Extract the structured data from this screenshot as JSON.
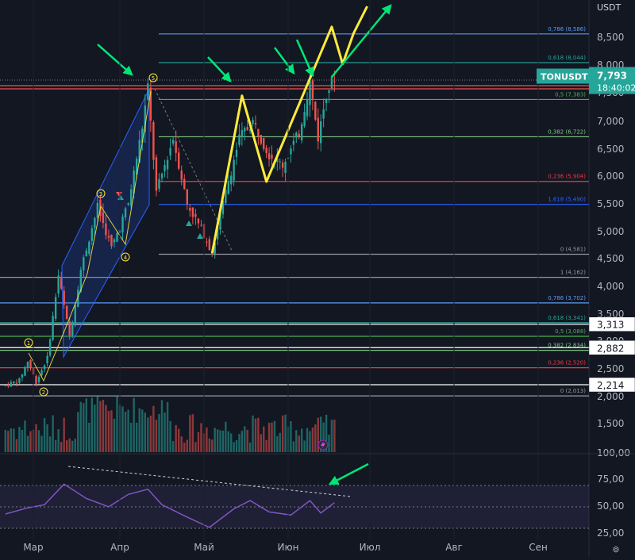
{
  "currency": "USDT",
  "symbol": "TONUSDT",
  "last_price": "7,793",
  "countdown": "18:40:02",
  "colors": {
    "background": "#131722",
    "up": "#26a69a",
    "down": "#ef5350",
    "yellow": "#ffeb3b",
    "green_arrow": "#00e676",
    "rsi_line": "#7e57c2",
    "channel": "#2962ff"
  },
  "price_axis": {
    "ticks": [
      "8,500",
      "8,000",
      "7,500",
      "7,000",
      "6,500",
      "6,000",
      "5,500",
      "5,000",
      "4,500",
      "4,000",
      "3,500",
      "3,000",
      "2,500",
      "2,000",
      "1,500",
      "100,00"
    ]
  },
  "time_axis": {
    "labels": [
      "Мар",
      "Апр",
      "Май",
      "Июн",
      "Июл",
      "Авг",
      "Сен"
    ]
  },
  "rsi_axis": {
    "ticks": [
      "75,00",
      "50,00",
      "25,00"
    ]
  },
  "price_tags": [
    {
      "label": "3,313",
      "price": 3313
    },
    {
      "label": "2,882",
      "price": 2882
    },
    {
      "label": "2,214",
      "price": 2214
    }
  ],
  "fib_upper": [
    {
      "label": "0,786 (8,586)",
      "price": 8586,
      "color": "#5b9cf6"
    },
    {
      "label": "0,618 (8,044)",
      "price": 8044,
      "color": "#26a69a"
    },
    {
      "label": "0,5 (7,383)",
      "price": 7383,
      "color": "#4caf50"
    },
    {
      "label": "0,382 (6,722)",
      "price": 6722,
      "color": "#81c784"
    },
    {
      "label": "0,236 (5,904)",
      "price": 5904,
      "color": "#f23645"
    },
    {
      "label": "1,618 (5,490)",
      "price": 5490,
      "color": "#2962ff"
    },
    {
      "label": "0 (4,581)",
      "price": 4581,
      "color": "#9598a1"
    }
  ],
  "fib_lower": [
    {
      "label": "1 (4,162)",
      "price": 4162,
      "color": "#9598a1"
    },
    {
      "label": "0,786 (3,702)",
      "price": 3702,
      "color": "#5b9cf6"
    },
    {
      "label": "0,618 (3,341)",
      "price": 3341,
      "color": "#26a69a"
    },
    {
      "label": "0,5 (3,088)",
      "price": 3088,
      "color": "#4caf50"
    },
    {
      "label": "0,382 (2,834)",
      "price": 2834,
      "color": "#81c784"
    },
    {
      "label": "0,236 (2,520)",
      "price": 2520,
      "color": "#f23645"
    },
    {
      "label": "0 (2,013)",
      "price": 2013,
      "color": "#9598a1"
    }
  ],
  "wave_labels": [
    "1",
    "2",
    "3",
    "4",
    "5"
  ],
  "chart_data": {
    "type": "line",
    "ylim": [
      1100,
      9350
    ],
    "close_path": [
      {
        "date": "2024-02-20",
        "close": 2200
      },
      {
        "date": "2024-02-25",
        "close": 2300
      },
      {
        "date": "2024-02-28",
        "close": 2640
      },
      {
        "date": "2024-03-02",
        "close": 2260
      },
      {
        "date": "2024-03-06",
        "close": 2700
      },
      {
        "date": "2024-03-10",
        "close": 4200
      },
      {
        "date": "2024-03-14",
        "close": 3100
      },
      {
        "date": "2024-03-18",
        "close": 4300
      },
      {
        "date": "2024-03-24",
        "close": 5450
      },
      {
        "date": "2024-03-29",
        "close": 4700
      },
      {
        "date": "2024-04-04",
        "close": 5500
      },
      {
        "date": "2024-04-09",
        "close": 6900
      },
      {
        "date": "2024-04-11",
        "close": 7600
      },
      {
        "date": "2024-04-14",
        "close": 5700
      },
      {
        "date": "2024-04-20",
        "close": 6700
      },
      {
        "date": "2024-04-25",
        "close": 5500
      },
      {
        "date": "2024-05-01",
        "close": 4950
      },
      {
        "date": "2024-05-04",
        "close": 4600
      },
      {
        "date": "2024-05-08",
        "close": 5500
      },
      {
        "date": "2024-05-14",
        "close": 6700
      },
      {
        "date": "2024-05-19",
        "close": 7000
      },
      {
        "date": "2024-05-25",
        "close": 6400
      },
      {
        "date": "2024-05-30",
        "close": 6200
      },
      {
        "date": "2024-06-05",
        "close": 6800
      },
      {
        "date": "2024-06-09",
        "close": 7700
      },
      {
        "date": "2024-06-12",
        "close": 6700
      },
      {
        "date": "2024-06-15",
        "close": 7500
      },
      {
        "date": "2024-06-18",
        "close": 7793
      }
    ],
    "projection": [
      {
        "date": "2024-05-04",
        "price": 4600
      },
      {
        "date": "2024-05-15",
        "price": 7450
      },
      {
        "date": "2024-05-24",
        "price": 5900
      },
      {
        "date": "2024-06-17",
        "price": 8770
      },
      {
        "date": "2024-06-21",
        "price": 8020
      },
      {
        "date": "2024-06-25",
        "price": 8600
      },
      {
        "date": "2024-06-30",
        "price": 9300
      }
    ],
    "rsi": [
      {
        "date": "2024-02-20",
        "value": 55
      },
      {
        "date": "2024-02-28",
        "value": 61
      },
      {
        "date": "2024-03-05",
        "value": 64
      },
      {
        "date": "2024-03-12",
        "value": 84
      },
      {
        "date": "2024-03-20",
        "value": 70
      },
      {
        "date": "2024-03-28",
        "value": 62
      },
      {
        "date": "2024-04-04",
        "value": 74
      },
      {
        "date": "2024-04-11",
        "value": 79
      },
      {
        "date": "2024-04-16",
        "value": 64
      },
      {
        "date": "2024-04-25",
        "value": 52
      },
      {
        "date": "2024-05-03",
        "value": 42
      },
      {
        "date": "2024-05-12",
        "value": 60
      },
      {
        "date": "2024-05-18",
        "value": 68
      },
      {
        "date": "2024-05-25",
        "value": 57
      },
      {
        "date": "2024-06-02",
        "value": 54
      },
      {
        "date": "2024-06-09",
        "value": 68
      },
      {
        "date": "2024-06-13",
        "value": 56
      },
      {
        "date": "2024-06-18",
        "value": 66
      }
    ],
    "rsi_ylim": [
      15,
      105
    ]
  }
}
